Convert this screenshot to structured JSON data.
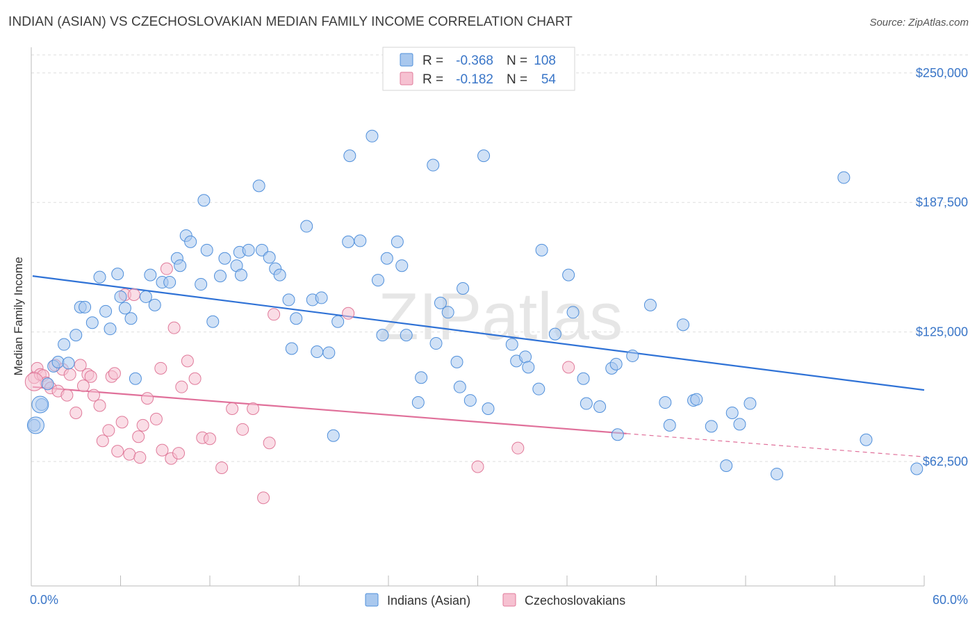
{
  "title": "INDIAN (ASIAN) VS CZECHOSLOVAKIAN MEDIAN FAMILY INCOME CORRELATION CHART",
  "source": "Source: ZipAtlas.com",
  "watermark": "ZIPatlas",
  "colors": {
    "blue": "#4f8fdb",
    "blue_fill": "#a9c8ee",
    "blue_line": "#2f72d6",
    "pink": "#e07a9a",
    "pink_fill": "#f6c1d1",
    "pink_line": "#e0709a",
    "axis_text": "#3a76c8",
    "grid": "#dddddd"
  },
  "legend": {
    "rows": [
      {
        "r_label": "R =",
        "r_value": "-0.368",
        "n_label": "N =",
        "n_value": "108"
      },
      {
        "r_label": "R =",
        "r_value": "-0.182",
        "n_label": "N =",
        "n_value": "54"
      }
    ]
  },
  "chart_data": {
    "type": "scatter",
    "title": "INDIAN (ASIAN) VS CZECHOSLOVAKIAN MEDIAN FAMILY INCOME CORRELATION CHART",
    "xlabel": "",
    "ylabel": "Median Family Income",
    "xlim": [
      0,
      60
    ],
    "ylim": [
      2500,
      260000
    ],
    "x_tick_labels": [
      "0.0%",
      "60.0%"
    ],
    "y_ticks": [
      62500,
      125000,
      187500,
      250000
    ],
    "y_tick_labels": [
      "$62,500",
      "$125,000",
      "$187,500",
      "$250,000"
    ],
    "grid": true,
    "legend_position": "top-center",
    "bottom_legend": [
      "Indians (Asian)",
      "Czechoslovakians"
    ],
    "series": [
      {
        "name": "Indians (Asian)",
        "r": -0.368,
        "n": 108,
        "trend": {
          "x": [
            0,
            60
          ],
          "y": [
            152000,
            97000
          ]
        },
        "points": [
          [
            0.2,
            80000
          ],
          [
            0.7,
            90000
          ],
          [
            1.1,
            100000
          ],
          [
            1.5,
            108500
          ],
          [
            1.8,
            110500
          ],
          [
            2.2,
            119000
          ],
          [
            2.5,
            110000
          ],
          [
            3.0,
            123500
          ],
          [
            3.3,
            137000
          ],
          [
            3.6,
            137000
          ],
          [
            4.1,
            129500
          ],
          [
            4.6,
            151500
          ],
          [
            5.0,
            135000
          ],
          [
            5.3,
            126500
          ],
          [
            5.8,
            153000
          ],
          [
            6.0,
            142000
          ],
          [
            6.3,
            136500
          ],
          [
            6.7,
            131500
          ],
          [
            7.0,
            102500
          ],
          [
            7.7,
            142000
          ],
          [
            8.0,
            152500
          ],
          [
            8.3,
            138000
          ],
          [
            8.8,
            149000
          ],
          [
            9.3,
            149000
          ],
          [
            9.8,
            160500
          ],
          [
            10.0,
            157000
          ],
          [
            10.4,
            171500
          ],
          [
            10.7,
            168500
          ],
          [
            11.4,
            148000
          ],
          [
            11.6,
            188500
          ],
          [
            11.8,
            164500
          ],
          [
            12.2,
            130000
          ],
          [
            12.7,
            152000
          ],
          [
            13.0,
            160500
          ],
          [
            13.8,
            157000
          ],
          [
            14.0,
            163500
          ],
          [
            14.1,
            152500
          ],
          [
            14.6,
            164500
          ],
          [
            15.3,
            195500
          ],
          [
            15.5,
            164500
          ],
          [
            16.0,
            161000
          ],
          [
            16.4,
            155500
          ],
          [
            16.7,
            152500
          ],
          [
            17.3,
            140500
          ],
          [
            17.5,
            117000
          ],
          [
            17.8,
            131500
          ],
          [
            18.5,
            176000
          ],
          [
            18.9,
            140500
          ],
          [
            19.2,
            115500
          ],
          [
            19.5,
            141500
          ],
          [
            20.0,
            115000
          ],
          [
            20.3,
            75000
          ],
          [
            20.6,
            130000
          ],
          [
            21.3,
            168500
          ],
          [
            21.4,
            210000
          ],
          [
            22.1,
            169000
          ],
          [
            22.9,
            219500
          ],
          [
            23.3,
            150000
          ],
          [
            23.6,
            123500
          ],
          [
            23.9,
            160500
          ],
          [
            24.6,
            168500
          ],
          [
            24.9,
            157000
          ],
          [
            25.2,
            123500
          ],
          [
            26.0,
            91000
          ],
          [
            26.2,
            103000
          ],
          [
            27.0,
            205500
          ],
          [
            27.2,
            119500
          ],
          [
            27.5,
            139000
          ],
          [
            28.0,
            134500
          ],
          [
            28.6,
            110500
          ],
          [
            28.8,
            98500
          ],
          [
            29.0,
            146000
          ],
          [
            29.5,
            92000
          ],
          [
            30.4,
            210000
          ],
          [
            30.7,
            88000
          ],
          [
            32.3,
            119000
          ],
          [
            32.6,
            111000
          ],
          [
            33.2,
            113000
          ],
          [
            33.4,
            108000
          ],
          [
            34.1,
            97500
          ],
          [
            34.3,
            164500
          ],
          [
            35.2,
            124000
          ],
          [
            36.1,
            152500
          ],
          [
            36.4,
            134500
          ],
          [
            37.1,
            102500
          ],
          [
            37.3,
            90500
          ],
          [
            38.2,
            89000
          ],
          [
            39.0,
            107500
          ],
          [
            39.3,
            109500
          ],
          [
            39.4,
            75500
          ],
          [
            40.4,
            113500
          ],
          [
            41.6,
            138000
          ],
          [
            42.6,
            91000
          ],
          [
            42.9,
            80000
          ],
          [
            43.8,
            128500
          ],
          [
            44.5,
            92000
          ],
          [
            44.7,
            92500
          ],
          [
            45.7,
            79500
          ],
          [
            46.7,
            60500
          ],
          [
            47.1,
            86000
          ],
          [
            47.6,
            80500
          ],
          [
            48.3,
            90500
          ],
          [
            50.1,
            56500
          ],
          [
            54.6,
            199500
          ],
          [
            56.1,
            73000
          ],
          [
            59.5,
            59000
          ]
        ]
      },
      {
        "name": "Czechoslovakians",
        "r": -0.182,
        "n": 54,
        "trend": {
          "x": [
            0,
            40
          ],
          "y": [
            98500,
            76000
          ]
        },
        "trend_dashed": {
          "x": [
            40,
            60
          ],
          "y": [
            76000,
            64800
          ]
        },
        "points": [
          [
            0.2,
            103000
          ],
          [
            0.4,
            107500
          ],
          [
            0.6,
            104500
          ],
          [
            0.8,
            104000
          ],
          [
            1.0,
            100500
          ],
          [
            1.3,
            98000
          ],
          [
            1.6,
            109000
          ],
          [
            1.8,
            96500
          ],
          [
            2.1,
            107000
          ],
          [
            2.4,
            94500
          ],
          [
            2.6,
            104500
          ],
          [
            3.0,
            86000
          ],
          [
            3.3,
            109000
          ],
          [
            3.5,
            99000
          ],
          [
            3.8,
            104500
          ],
          [
            4.0,
            103500
          ],
          [
            4.2,
            94500
          ],
          [
            4.6,
            89500
          ],
          [
            4.8,
            72500
          ],
          [
            5.2,
            77500
          ],
          [
            5.4,
            103500
          ],
          [
            5.6,
            105000
          ],
          [
            5.8,
            67500
          ],
          [
            6.1,
            81500
          ],
          [
            6.3,
            143000
          ],
          [
            6.6,
            66000
          ],
          [
            6.9,
            143000
          ],
          [
            7.2,
            74500
          ],
          [
            7.3,
            64500
          ],
          [
            7.5,
            80000
          ],
          [
            7.8,
            93000
          ],
          [
            8.4,
            83000
          ],
          [
            8.7,
            107500
          ],
          [
            8.8,
            68000
          ],
          [
            9.1,
            155500
          ],
          [
            9.4,
            64000
          ],
          [
            9.6,
            127000
          ],
          [
            9.9,
            66500
          ],
          [
            10.1,
            98500
          ],
          [
            10.5,
            111000
          ],
          [
            11.0,
            102500
          ],
          [
            11.5,
            74000
          ],
          [
            12.0,
            73500
          ],
          [
            12.8,
            59500
          ],
          [
            13.5,
            88000
          ],
          [
            14.9,
            88000
          ],
          [
            14.2,
            78000
          ],
          [
            15.6,
            45000
          ],
          [
            16.0,
            71500
          ],
          [
            16.3,
            133500
          ],
          [
            21.3,
            134000
          ],
          [
            30.0,
            60000
          ],
          [
            32.7,
            69000
          ],
          [
            36.1,
            108000
          ]
        ]
      }
    ]
  }
}
